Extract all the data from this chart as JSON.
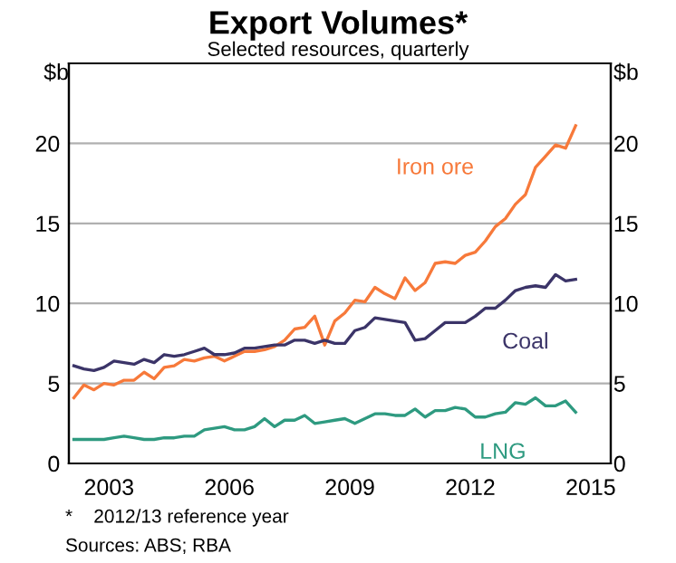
{
  "chart_data": {
    "type": "line",
    "title": "Export Volumes*",
    "subtitle": "Selected resources, quarterly",
    "ylabel": "$b",
    "y2label": "$b",
    "x": [
      2002.625,
      2002.875,
      2003.125,
      2003.375,
      2003.625,
      2003.875,
      2004.125,
      2004.375,
      2004.625,
      2004.875,
      2005.125,
      2005.375,
      2005.625,
      2005.875,
      2006.125,
      2006.375,
      2006.625,
      2006.875,
      2007.125,
      2007.375,
      2007.625,
      2007.875,
      2008.125,
      2008.375,
      2008.625,
      2008.875,
      2009.125,
      2009.375,
      2009.625,
      2009.875,
      2010.125,
      2010.375,
      2010.625,
      2010.875,
      2011.125,
      2011.375,
      2011.625,
      2011.875,
      2012.125,
      2012.375,
      2012.625,
      2012.875,
      2013.125,
      2013.375,
      2013.625,
      2013.875,
      2014.125,
      2014.375,
      2014.625,
      2014.875,
      2015.125
    ],
    "series": [
      {
        "name": "Iron ore",
        "color": "#f7793a",
        "values": [
          4.1,
          4.9,
          4.6,
          5.0,
          4.9,
          5.2,
          5.2,
          5.7,
          5.3,
          6.0,
          6.1,
          6.5,
          6.4,
          6.6,
          6.7,
          6.4,
          6.7,
          7.0,
          7.0,
          7.1,
          7.3,
          7.7,
          8.4,
          8.5,
          9.2,
          7.4,
          8.9,
          9.4,
          10.2,
          10.1,
          11.0,
          10.6,
          10.3,
          11.6,
          10.8,
          11.3,
          12.5,
          12.6,
          12.5,
          13.0,
          13.2,
          13.9,
          14.8,
          15.3,
          16.2,
          16.8,
          18.5,
          19.2,
          19.9,
          19.7,
          21.1
        ]
      },
      {
        "name": "Coal",
        "color": "#3b3468",
        "values": [
          6.1,
          5.9,
          5.8,
          6.0,
          6.4,
          6.3,
          6.2,
          6.5,
          6.3,
          6.8,
          6.7,
          6.8,
          7.0,
          7.2,
          6.8,
          6.8,
          6.9,
          7.2,
          7.2,
          7.3,
          7.4,
          7.4,
          7.7,
          7.7,
          7.5,
          7.7,
          7.5,
          7.5,
          8.3,
          8.5,
          9.1,
          9.0,
          8.9,
          8.8,
          7.7,
          7.8,
          8.3,
          8.8,
          8.8,
          8.8,
          9.2,
          9.7,
          9.7,
          10.2,
          10.8,
          11.0,
          11.1,
          11.0,
          11.8,
          11.4,
          11.5
        ]
      },
      {
        "name": "LNG",
        "color": "#2e9a80",
        "values": [
          1.5,
          1.5,
          1.5,
          1.5,
          1.6,
          1.7,
          1.6,
          1.5,
          1.5,
          1.6,
          1.6,
          1.7,
          1.7,
          2.1,
          2.2,
          2.3,
          2.1,
          2.1,
          2.3,
          2.8,
          2.3,
          2.7,
          2.7,
          3.0,
          2.5,
          2.6,
          2.7,
          2.8,
          2.5,
          2.8,
          3.1,
          3.1,
          3.0,
          3.0,
          3.4,
          2.9,
          3.3,
          3.3,
          3.5,
          3.4,
          2.9,
          2.9,
          3.1,
          3.2,
          3.8,
          3.7,
          4.1,
          3.6,
          3.6,
          3.9,
          3.2
        ]
      }
    ],
    "annotations": [
      "*    2012/13 reference year",
      "Sources: ABS; RBA"
    ],
    "xlim": [
      2002.5,
      2016.0
    ],
    "xticks": [
      {
        "value": 2003.5,
        "label": "2003"
      },
      {
        "value": 2006.5,
        "label": "2006"
      },
      {
        "value": 2009.5,
        "label": "2009"
      },
      {
        "value": 2012.5,
        "label": "2012"
      },
      {
        "value": 2015.5,
        "label": "2015"
      }
    ],
    "ylim": [
      0,
      25
    ],
    "yticks": [
      0,
      5,
      10,
      15,
      20
    ],
    "y2lim": [
      0,
      25
    ],
    "y2ticks": [
      0,
      5,
      10,
      15,
      20
    ],
    "grid": "y",
    "legend": false,
    "marker": "none",
    "line_style": "solid"
  }
}
